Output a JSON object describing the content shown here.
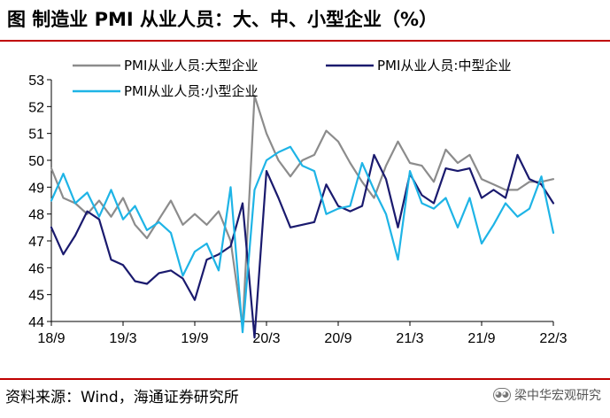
{
  "title": "图  制造业 PMI 从业人员：大、中、小型企业（%）",
  "source": "资料来源：Wind，海通证券研究所",
  "watermark": "梁中华宏观研究",
  "colors": {
    "large": "#8c8c8c",
    "medium": "#1a1a6e",
    "small": "#1eb4e6",
    "rule": "#c00000"
  },
  "chart_data": {
    "type": "line",
    "title": "制造业 PMI 从业人员：大、中、小型企业（%）",
    "xlabel": "",
    "ylabel": "",
    "ylim": [
      44,
      53
    ],
    "yticks": [
      44,
      45,
      46,
      47,
      48,
      49,
      50,
      51,
      52,
      53
    ],
    "xticks": [
      "18/9",
      "19/3",
      "19/9",
      "20/3",
      "20/9",
      "21/3",
      "21/9",
      "22/3"
    ],
    "x": [
      "18/9",
      "18/10",
      "18/11",
      "18/12",
      "19/1",
      "19/2",
      "19/3",
      "19/4",
      "19/5",
      "19/6",
      "19/7",
      "19/8",
      "19/9",
      "19/10",
      "19/11",
      "19/12",
      "20/1",
      "20/2",
      "20/3",
      "20/4",
      "20/5",
      "20/6",
      "20/7",
      "20/8",
      "20/9",
      "20/10",
      "20/11",
      "20/12",
      "21/1",
      "21/2",
      "21/3",
      "21/4",
      "21/5",
      "21/6",
      "21/7",
      "21/8",
      "21/9",
      "21/10",
      "21/11",
      "21/12",
      "22/1",
      "22/2",
      "22/3"
    ],
    "series": [
      {
        "name": "PMI从业人员:大型企业",
        "key": "large",
        "values": [
          49.7,
          48.6,
          48.4,
          48.0,
          48.5,
          47.9,
          48.6,
          47.6,
          47.1,
          47.8,
          48.5,
          47.6,
          48.0,
          47.6,
          48.1,
          47.0,
          43.8,
          52.4,
          51.0,
          50.0,
          49.4,
          50.0,
          50.2,
          51.1,
          50.7,
          49.9,
          49.2,
          48.6,
          49.8,
          50.7,
          49.9,
          49.8,
          49.2,
          50.4,
          49.9,
          50.2,
          49.3,
          49.1,
          48.9,
          48.9,
          49.2,
          49.2,
          49.3
        ]
      },
      {
        "name": "PMI从业人员:中型企业",
        "key": "medium",
        "values": [
          47.5,
          46.5,
          47.2,
          48.1,
          47.8,
          46.3,
          46.1,
          45.5,
          45.4,
          45.8,
          45.9,
          45.6,
          44.8,
          46.3,
          46.5,
          46.8,
          48.4,
          43.4,
          49.6,
          48.6,
          47.5,
          47.6,
          47.7,
          49.1,
          48.3,
          48.1,
          48.3,
          50.2,
          49.3,
          47.5,
          49.5,
          48.7,
          48.4,
          49.7,
          49.6,
          49.7,
          48.6,
          48.9,
          48.6,
          50.2,
          49.3,
          49.1,
          48.4
        ]
      },
      {
        "name": "PMI从业人员:小型企业",
        "key": "small",
        "values": [
          48.5,
          49.5,
          48.4,
          48.8,
          47.9,
          48.9,
          47.8,
          48.3,
          47.4,
          47.7,
          47.3,
          45.7,
          46.6,
          46.9,
          45.9,
          49.0,
          43.6,
          48.9,
          50.0,
          50.3,
          50.5,
          49.8,
          49.6,
          48.0,
          48.2,
          48.3,
          49.9,
          48.9,
          48.0,
          46.3,
          49.6,
          48.4,
          48.2,
          48.6,
          47.5,
          48.6,
          46.9,
          47.6,
          48.4,
          47.9,
          48.2,
          49.4,
          47.3
        ]
      }
    ],
    "legend": "top"
  }
}
